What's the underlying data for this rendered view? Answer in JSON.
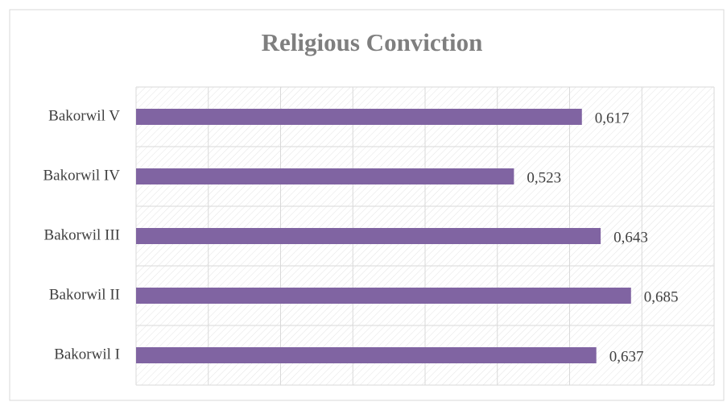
{
  "chart_data": {
    "type": "bar",
    "orientation": "horizontal",
    "title": "Religious Conviction",
    "categories": [
      "Bakorwil I",
      "Bakorwil II",
      "Bakorwil III",
      "Bakorwil IV",
      "Bakorwil V"
    ],
    "values": [
      0.637,
      0.685,
      0.643,
      0.523,
      0.617
    ],
    "value_labels": [
      "0,637",
      "0,685",
      "0,643",
      "0,523",
      "0,617"
    ],
    "color": "#8064a2",
    "xlim": [
      0,
      0.8
    ],
    "xticks": [
      0,
      0.1,
      0.2,
      0.3,
      0.4,
      0.5,
      0.6,
      0.7,
      0.8
    ],
    "grid": true
  }
}
